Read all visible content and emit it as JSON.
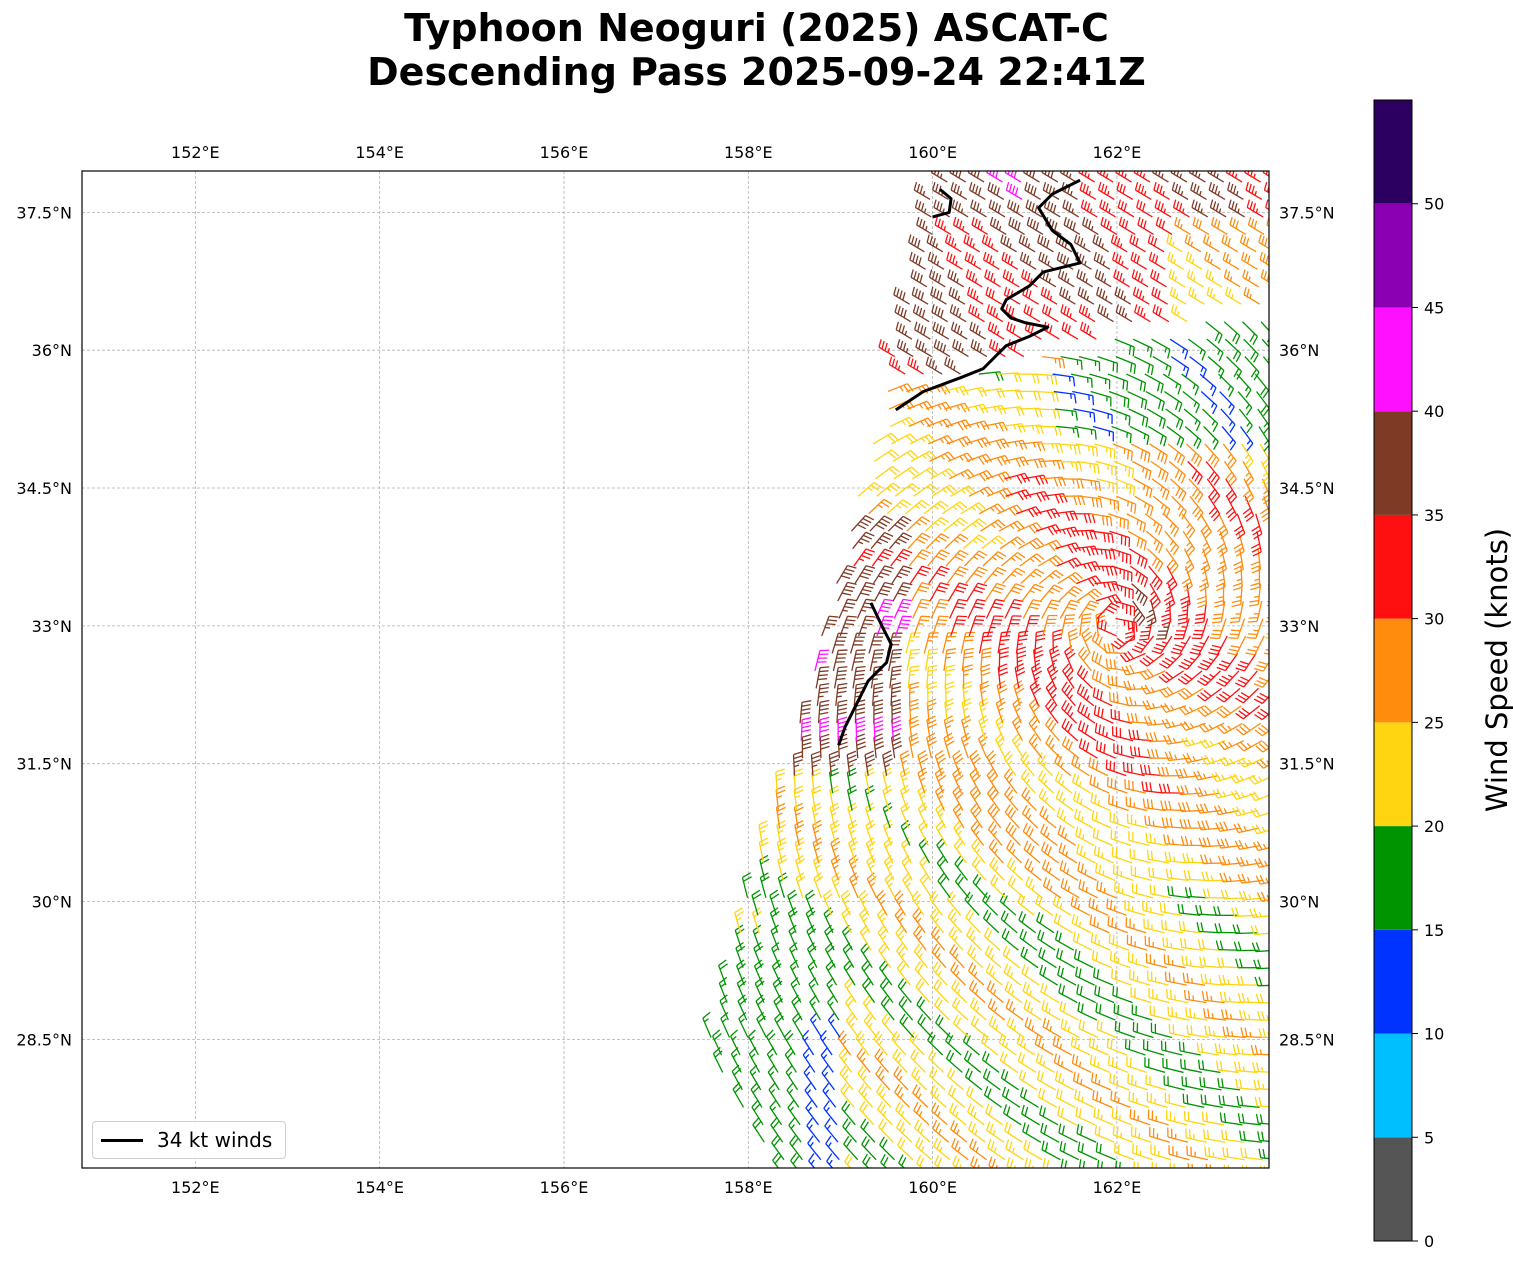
{
  "title": {
    "line1": "Typhoon Neoguri (2025) ASCAT-C",
    "line2": "Descending Pass 2025-09-24 22:41Z"
  },
  "map": {
    "lon_range": [
      150.77,
      163.65
    ],
    "lat_range": [
      27.1,
      37.95
    ],
    "lon_ticks": [
      152,
      154,
      156,
      158,
      160,
      162
    ],
    "lon_tick_labels": [
      "152°E",
      "154°E",
      "156°E",
      "158°E",
      "160°E",
      "162°E"
    ],
    "lat_ticks": [
      28.5,
      30,
      31.5,
      33,
      34.5,
      36,
      37.5
    ],
    "lat_tick_labels": [
      "28.5°N",
      "30°N",
      "31.5°N",
      "33°N",
      "34.5°N",
      "36°N",
      "37.5°N"
    ],
    "gridlines": true,
    "swath_corners": [
      [
        160.0,
        38.0
      ],
      [
        163.9,
        38.0
      ],
      [
        163.9,
        27.0
      ],
      [
        158.3,
        27.0
      ],
      [
        157.5,
        28.4
      ],
      [
        159.5,
        35.5
      ]
    ],
    "storm_center": [
      162.0,
      33.0
    ],
    "barb_colors": {
      "0-5": "#555555",
      "5-10": "#00bfff",
      "10-15": "#0033ff",
      "15-20": "#009400",
      "20-25": "#ffd410",
      "25-30": "#ff8c0d",
      "30-35": "#ff1010",
      "35-40": "#7f3a25",
      "40-45": "#ff10ff",
      "45-50": "#8b00b3",
      "50+": "#2b0060"
    }
  },
  "wind_34kt_contours": [
    [
      [
        160.08,
        37.75
      ],
      [
        160.2,
        37.65
      ],
      [
        160.18,
        37.5
      ],
      [
        160.0,
        37.45
      ]
    ],
    [
      [
        161.6,
        37.85
      ],
      [
        161.3,
        37.7
      ],
      [
        161.15,
        37.55
      ],
      [
        161.3,
        37.3
      ],
      [
        161.5,
        37.15
      ],
      [
        161.6,
        36.95
      ],
      [
        161.2,
        36.85
      ],
      [
        161.05,
        36.7
      ],
      [
        160.8,
        36.55
      ],
      [
        160.75,
        36.45
      ],
      [
        160.85,
        36.35
      ],
      [
        161.0,
        36.3
      ],
      [
        161.25,
        36.25
      ],
      [
        161.05,
        36.15
      ],
      [
        160.8,
        36.05
      ],
      [
        160.55,
        35.8
      ],
      [
        160.3,
        35.7
      ],
      [
        159.9,
        35.55
      ],
      [
        159.6,
        35.35
      ]
    ],
    [
      [
        159.33,
        33.25
      ],
      [
        159.45,
        33.0
      ],
      [
        159.55,
        32.8
      ],
      [
        159.5,
        32.6
      ],
      [
        159.3,
        32.4
      ],
      [
        159.2,
        32.2
      ],
      [
        159.05,
        31.9
      ],
      [
        158.98,
        31.7
      ]
    ]
  ],
  "legend": {
    "label": "34 kt winds",
    "position": "lower-left"
  },
  "colorbar": {
    "label": "Wind Speed (knots)",
    "bounds": [
      0,
      5,
      10,
      15,
      20,
      25,
      30,
      35,
      40,
      45,
      50,
      55
    ],
    "tick_labels": [
      "0",
      "5",
      "10",
      "15",
      "20",
      "25",
      "30",
      "35",
      "40",
      "45",
      "50"
    ],
    "colors": [
      "#555555",
      "#00bfff",
      "#0033ff",
      "#009400",
      "#ffd410",
      "#ff8c0d",
      "#ff1010",
      "#7f3a25",
      "#ff10ff",
      "#8b00b3",
      "#2b0060"
    ]
  }
}
